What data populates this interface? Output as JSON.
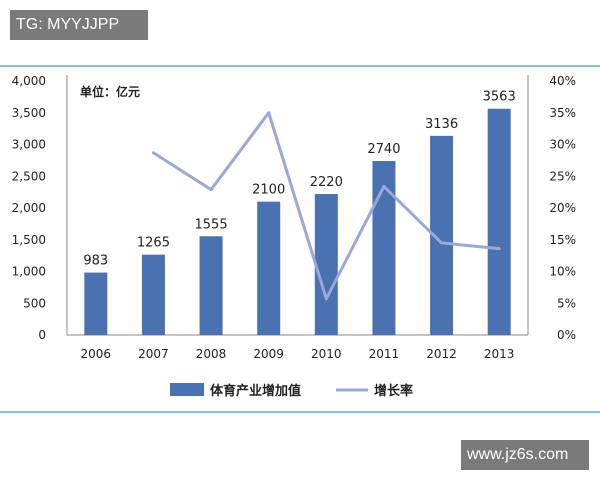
{
  "watermarks": {
    "top_left": "TG: MYYJJPP",
    "bottom_right": "www.jz6s.com"
  },
  "chart_data": {
    "type": "bar",
    "unit_label": "单位：亿元",
    "categories": [
      "2006",
      "2007",
      "2008",
      "2009",
      "2010",
      "2011",
      "2012",
      "2013"
    ],
    "series": [
      {
        "name": "体育产业增加值",
        "type": "bar",
        "axis": "left",
        "values": [
          983,
          1265,
          1555,
          2100,
          2220,
          2740,
          3136,
          3563
        ]
      },
      {
        "name": "增长率",
        "type": "line",
        "axis": "right",
        "values": [
          null,
          28.7,
          22.9,
          35.0,
          5.7,
          23.4,
          14.5,
          13.6
        ]
      }
    ],
    "y_left": {
      "ylim": [
        0,
        4000
      ],
      "ticks": [
        "0",
        "500",
        "1,000",
        "1,500",
        "2,000",
        "2,500",
        "3,000",
        "3,500",
        "4,000"
      ]
    },
    "y_right": {
      "ylim": [
        0,
        40
      ],
      "ticks": [
        "0%",
        "5%",
        "10%",
        "15%",
        "20%",
        "25%",
        "30%",
        "35%",
        "40%"
      ]
    },
    "grid": false,
    "legend_position": "bottom",
    "colors": {
      "bar": "#4a72b0",
      "line": "#9aa8d8",
      "frame": "#7fc4e4",
      "axis": "#888888"
    }
  }
}
